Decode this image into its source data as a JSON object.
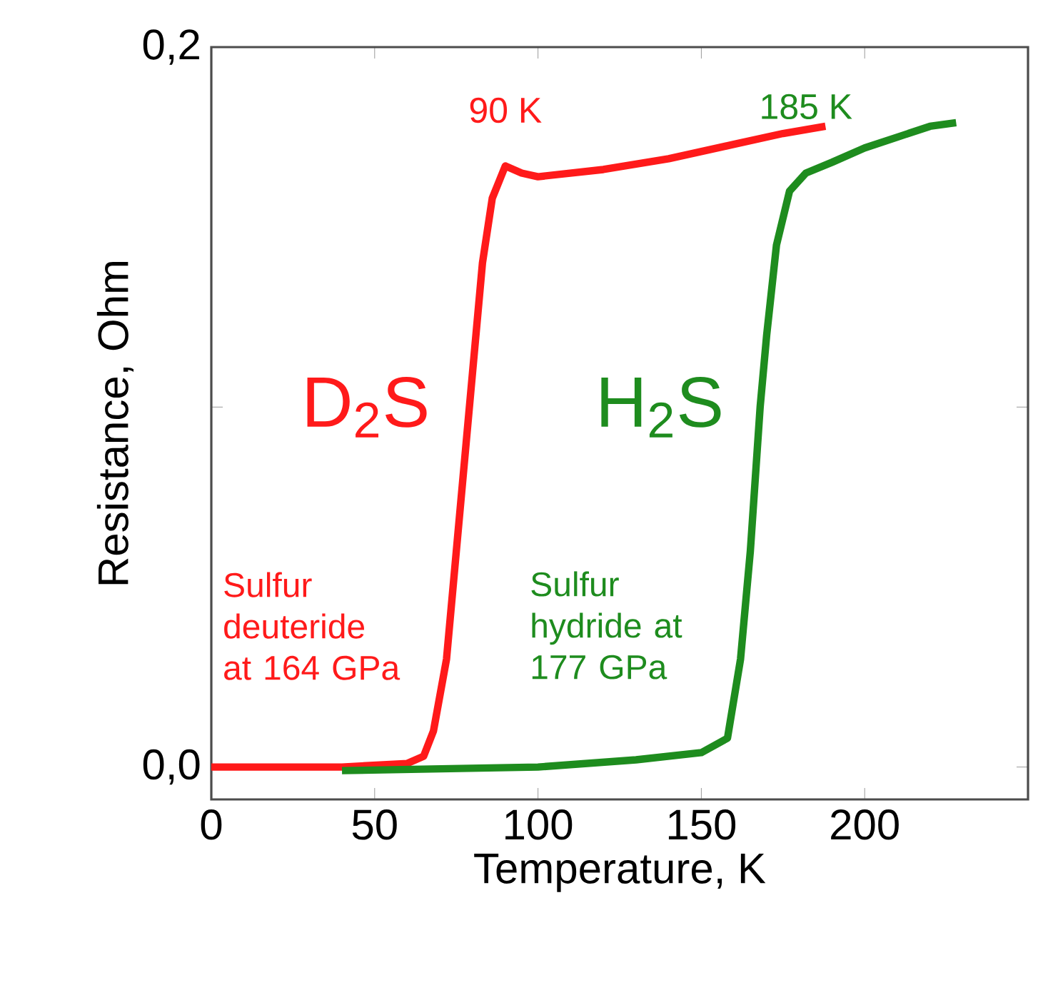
{
  "chart_data": {
    "type": "line",
    "xlabel": "Temperature, K",
    "ylabel": "Resistance, Ohm",
    "xlim": [
      0,
      250
    ],
    "ylim": [
      -0.009,
      0.2
    ],
    "xticks": [
      0,
      50,
      100,
      150,
      200
    ],
    "yticks": [
      {
        "value": 0,
        "label": "0,0"
      },
      {
        "value": 0.1,
        "label": null
      },
      {
        "value": 0.2,
        "label": "0,2"
      }
    ],
    "series": [
      {
        "name": "D$_{2}$S",
        "color": "#ff1a1a",
        "x": [
          0,
          40,
          60,
          65,
          68,
          72,
          75,
          78,
          80,
          83,
          86,
          90,
          95,
          100,
          120,
          140,
          160,
          175,
          188
        ],
        "values": [
          0,
          0,
          0.001,
          0.003,
          0.01,
          0.03,
          0.06,
          0.09,
          0.11,
          0.14,
          0.158,
          0.167,
          0.165,
          0.164,
          0.166,
          0.169,
          0.173,
          0.176,
          0.178
        ]
      },
      {
        "name": "H$_{2}$S",
        "color": "#1e8c1e",
        "x": [
          40,
          100,
          130,
          150,
          158,
          162,
          165,
          168,
          170,
          173,
          177,
          182,
          190,
          200,
          210,
          220,
          228
        ],
        "values": [
          -0.001,
          0,
          0.002,
          0.004,
          0.008,
          0.03,
          0.06,
          0.1,
          0.12,
          0.145,
          0.16,
          0.165,
          0.168,
          0.172,
          0.175,
          0.178,
          0.179
        ]
      }
    ],
    "annotations": [
      "90 K",
      "Sulfur deuteride at 164 GPa",
      "185 K",
      "Sulfur hydride at 177 GPa"
    ]
  }
}
